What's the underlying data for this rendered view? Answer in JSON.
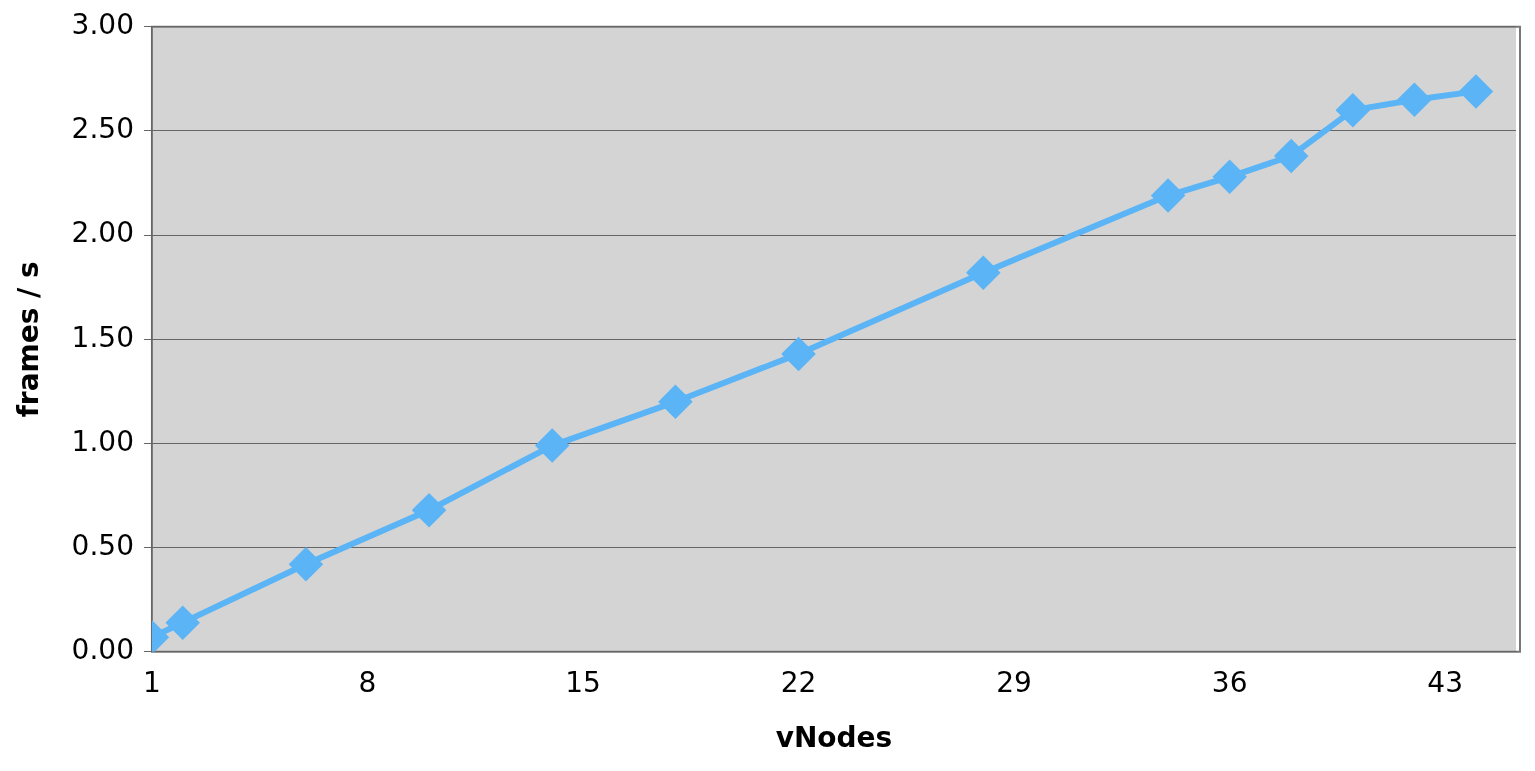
{
  "chart_data": {
    "type": "line",
    "xlabel": "vNodes",
    "ylabel": "frames / s",
    "x": [
      1,
      2,
      6,
      10,
      14,
      18,
      22,
      28,
      34,
      36,
      38,
      40,
      42,
      44
    ],
    "series": [
      {
        "color": "#5ab4f5",
        "values": [
          0.07,
          0.14,
          0.42,
          0.68,
          0.99,
          1.2,
          1.43,
          1.82,
          2.19,
          2.28,
          2.38,
          2.6,
          2.65,
          2.69
        ]
      }
    ],
    "xlim": [
      1,
      45.3
    ],
    "xticks": [
      1,
      8,
      15,
      22,
      29,
      36,
      43
    ],
    "ylim": [
      0,
      3
    ],
    "yticks": [
      {
        "value": 0,
        "label": "0.00"
      },
      {
        "value": 0.5,
        "label": "0.50"
      },
      {
        "value": 1,
        "label": "1.00"
      },
      {
        "value": 1.5,
        "label": "1.50"
      },
      {
        "value": 2,
        "label": "2.00"
      },
      {
        "value": 2.5,
        "label": "2.50"
      },
      {
        "value": 3,
        "label": "3.00"
      }
    ],
    "grid": "y",
    "legend": false,
    "marker": "diamond",
    "line_style": "solid"
  }
}
